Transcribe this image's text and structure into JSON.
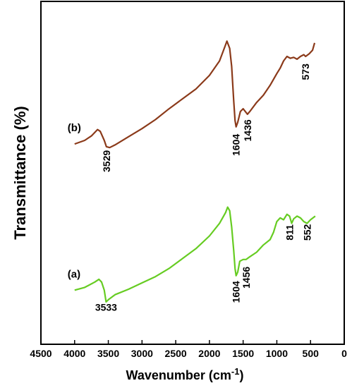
{
  "chart_data": {
    "type": "line",
    "xlabel_main": "Wavenumber (cm",
    "xlabel_sup": "-1",
    "xlabel_close": ")",
    "ylabel": "Transmittance (%)",
    "xlim": [
      4500,
      0
    ],
    "xticks": [
      4500,
      4000,
      3500,
      3000,
      2500,
      2000,
      1500,
      1000,
      500,
      0
    ],
    "y_axis_ticks_visible": false,
    "grid": false,
    "legend": "none",
    "series": [
      {
        "tag": "(a)",
        "color": "#66cc22",
        "points": [
          [
            4000,
            10.0
          ],
          [
            3850,
            11.5
          ],
          [
            3700,
            14.5
          ],
          [
            3640,
            16.0
          ],
          [
            3600,
            14.5
          ],
          [
            3560,
            10.0
          ],
          [
            3533,
            3.5
          ],
          [
            3490,
            5.0
          ],
          [
            3400,
            7.5
          ],
          [
            3200,
            10.5
          ],
          [
            3000,
            14.0
          ],
          [
            2800,
            17.5
          ],
          [
            2600,
            22.0
          ],
          [
            2400,
            27.5
          ],
          [
            2200,
            33.0
          ],
          [
            2000,
            40.0
          ],
          [
            1850,
            47.0
          ],
          [
            1760,
            53.0
          ],
          [
            1730,
            56.0
          ],
          [
            1700,
            54.0
          ],
          [
            1670,
            45.0
          ],
          [
            1640,
            32.0
          ],
          [
            1620,
            22.0
          ],
          [
            1604,
            18.0
          ],
          [
            1580,
            20.0
          ],
          [
            1550,
            26.0
          ],
          [
            1500,
            27.0
          ],
          [
            1456,
            27.0
          ],
          [
            1400,
            28.5
          ],
          [
            1300,
            31.0
          ],
          [
            1200,
            35.0
          ],
          [
            1100,
            38.0
          ],
          [
            1050,
            42.0
          ],
          [
            1000,
            48.0
          ],
          [
            950,
            50.0
          ],
          [
            900,
            49.0
          ],
          [
            850,
            52.0
          ],
          [
            811,
            51.0
          ],
          [
            780,
            47.0
          ],
          [
            750,
            49.5
          ],
          [
            700,
            51.0
          ],
          [
            650,
            50.0
          ],
          [
            600,
            48.0
          ],
          [
            552,
            47.0
          ],
          [
            500,
            49.0
          ],
          [
            430,
            51.0
          ]
        ]
      },
      {
        "tag": "(b)",
        "color": "#8b3a1a",
        "points": [
          [
            4000,
            91.0
          ],
          [
            3850,
            93.0
          ],
          [
            3750,
            95.5
          ],
          [
            3660,
            99.0
          ],
          [
            3620,
            98.0
          ],
          [
            3560,
            93.0
          ],
          [
            3529,
            89.5
          ],
          [
            3480,
            89.0
          ],
          [
            3400,
            90.5
          ],
          [
            3200,
            95.0
          ],
          [
            3000,
            99.5
          ],
          [
            2800,
            104.5
          ],
          [
            2600,
            110.5
          ],
          [
            2400,
            116.0
          ],
          [
            2200,
            121.5
          ],
          [
            2000,
            129.0
          ],
          [
            1850,
            137.0
          ],
          [
            1770,
            145.0
          ],
          [
            1740,
            148.0
          ],
          [
            1700,
            144.0
          ],
          [
            1670,
            134.0
          ],
          [
            1640,
            115.0
          ],
          [
            1620,
            104.0
          ],
          [
            1604,
            100.5
          ],
          [
            1580,
            103.0
          ],
          [
            1540,
            109.0
          ],
          [
            1500,
            110.5
          ],
          [
            1436,
            107.5
          ],
          [
            1400,
            109.0
          ],
          [
            1300,
            114.0
          ],
          [
            1200,
            118.0
          ],
          [
            1100,
            123.5
          ],
          [
            1000,
            130.0
          ],
          [
            950,
            133.0
          ],
          [
            900,
            137.0
          ],
          [
            850,
            139.5
          ],
          [
            800,
            138.5
          ],
          [
            750,
            139.0
          ],
          [
            700,
            138.0
          ],
          [
            650,
            139.5
          ],
          [
            600,
            140.5
          ],
          [
            573,
            139.5
          ],
          [
            520,
            141.0
          ],
          [
            470,
            143.0
          ],
          [
            440,
            147.0
          ]
        ]
      }
    ],
    "annotations": [
      {
        "text": "3533",
        "x": 3533,
        "y": -1.5,
        "rotate": false
      },
      {
        "text": "1604",
        "x": 1604,
        "y": 9.0,
        "rotate": true
      },
      {
        "text": "1456",
        "x": 1456,
        "y": 17.0,
        "rotate": true
      },
      {
        "text": "811",
        "x": 811,
        "y": 42.0,
        "rotate": true
      },
      {
        "text": "552",
        "x": 552,
        "y": 42.0,
        "rotate": true
      },
      {
        "text": "3529",
        "x": 3529,
        "y": 81.5,
        "rotate": true
      },
      {
        "text": "1604",
        "x": 1604,
        "y": 90.5,
        "rotate": true
      },
      {
        "text": "1436",
        "x": 1436,
        "y": 98.5,
        "rotate": true
      },
      {
        "text": "573",
        "x": 573,
        "y": 131.0,
        "rotate": true
      }
    ]
  }
}
